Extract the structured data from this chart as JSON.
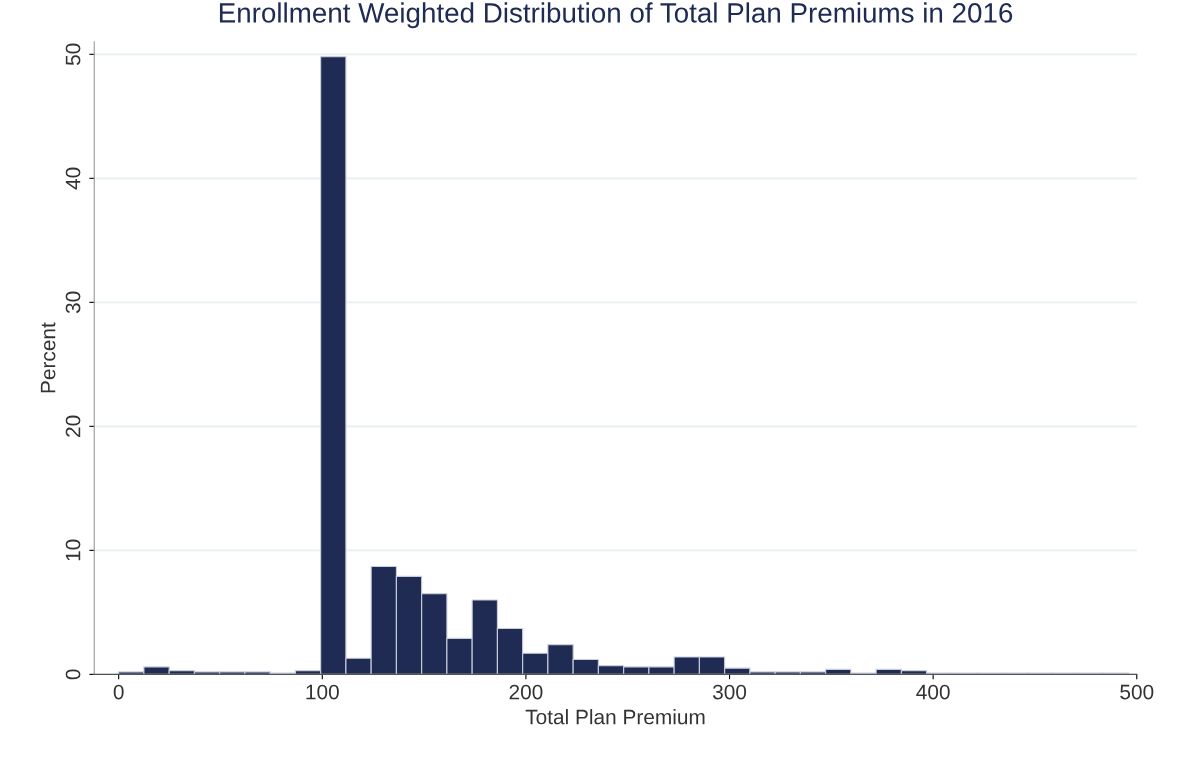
{
  "chart_data": {
    "type": "histogram",
    "title": "Enrollment Weighted Distribution of Total Plan Premiums in 2016",
    "xlabel": "Total Plan Premium",
    "ylabel": "Percent",
    "color": "#1f2b52",
    "bins": [
      0,
      12.4,
      24.8,
      37.2,
      49.6,
      62,
      74.4,
      86.8,
      99.2,
      111.6,
      124,
      136.4,
      148.8,
      161.2,
      173.6,
      186,
      198.4,
      210.8,
      223.2,
      235.6,
      248,
      260.4,
      272.8,
      285.2,
      297.6,
      310,
      322.4,
      334.8,
      347.2,
      359.6,
      372,
      384.4,
      396.8,
      409.2,
      421.6,
      434,
      446.4,
      458.8,
      471.2,
      483.6,
      496
    ],
    "values": [
      0.2,
      0.6,
      0.3,
      0.2,
      0.2,
      0.2,
      0.1,
      0.3,
      49.8,
      1.3,
      8.7,
      7.9,
      6.5,
      2.9,
      6.0,
      3.7,
      1.7,
      2.4,
      1.2,
      0.7,
      0.6,
      0.6,
      1.4,
      1.4,
      0.5,
      0.2,
      0.2,
      0.2,
      0.4,
      0.1,
      0.4,
      0.3,
      0.1,
      0.1,
      0.1,
      0.1,
      0.1,
      0.1,
      0.1,
      0.1
    ],
    "xlim": [
      -12,
      500
    ],
    "xticks": [
      0,
      100,
      200,
      300,
      400,
      500
    ],
    "ylim": [
      0,
      51
    ],
    "yticks": [
      0,
      10,
      20,
      30,
      40,
      50
    ],
    "grid": "y"
  }
}
